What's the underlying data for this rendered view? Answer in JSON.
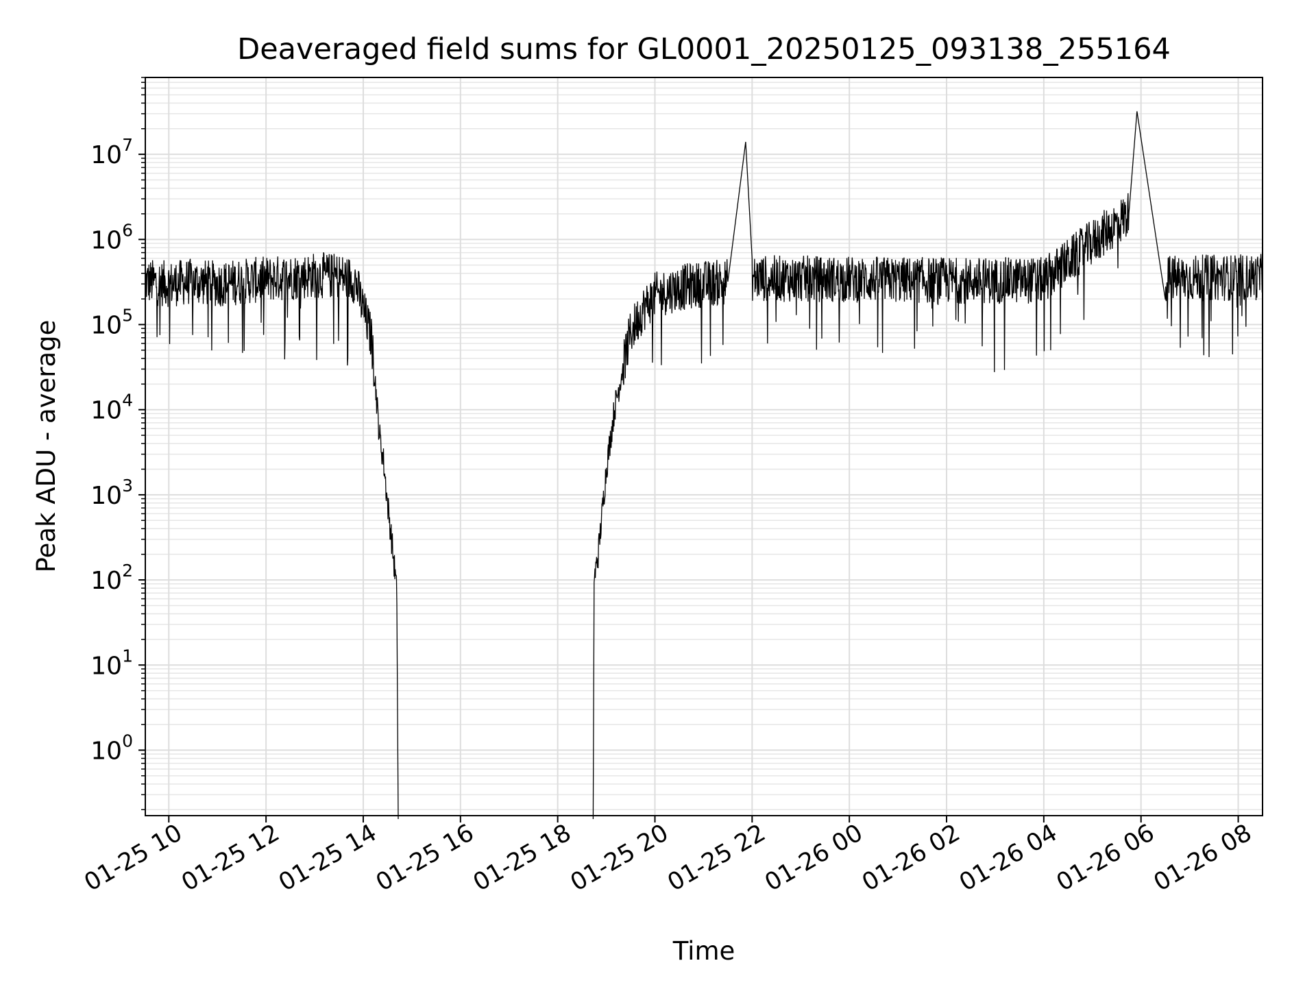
{
  "chart_data": {
    "type": "line",
    "title": "Deaveraged field sums for GL0001_20250125_093138_255164",
    "xlabel": "Time",
    "ylabel": "Peak ADU - average",
    "xscale": "time",
    "yscale": "log",
    "xlim": [
      "2025-01-25 09:31",
      "2025-01-26 08:30"
    ],
    "ylim": [
      0.17,
      80000000
    ],
    "grid": true,
    "x_ticks": [
      "01-25 10",
      "01-25 12",
      "01-25 14",
      "01-25 16",
      "01-25 18",
      "01-25 20",
      "01-25 22",
      "01-26 00",
      "01-26 02",
      "01-26 04",
      "01-26 06",
      "01-26 08"
    ],
    "y_ticks": [
      {
        "base": "10",
        "exp": "0"
      },
      {
        "base": "10",
        "exp": "1"
      },
      {
        "base": "10",
        "exp": "2"
      },
      {
        "base": "10",
        "exp": "3"
      },
      {
        "base": "10",
        "exp": "4"
      },
      {
        "base": "10",
        "exp": "5"
      },
      {
        "base": "10",
        "exp": "6"
      },
      {
        "base": "10",
        "exp": "7"
      }
    ],
    "series": [
      {
        "color": "#000000",
        "points": [
          [
            "2025-01-25 09:31",
            320000
          ],
          [
            "2025-01-25 10:00",
            300000
          ],
          [
            "2025-01-25 10:30",
            320000
          ],
          [
            "2025-01-25 11:00",
            300000
          ],
          [
            "2025-01-25 11:30",
            320000
          ],
          [
            "2025-01-25 12:00",
            340000
          ],
          [
            "2025-01-25 12:30",
            360000
          ],
          [
            "2025-01-25 13:00",
            380000
          ],
          [
            "2025-01-25 13:30",
            370000
          ],
          [
            "2025-01-25 13:50",
            330000
          ],
          [
            "2025-01-25 14:00",
            150000
          ],
          [
            "2025-01-25 14:10",
            70000
          ],
          [
            "2025-01-25 14:15",
            20000
          ],
          [
            "2025-01-25 14:20",
            5000
          ],
          [
            "2025-01-25 14:25",
            2500
          ],
          [
            "2025-01-25 14:30",
            800
          ],
          [
            "2025-01-25 14:35",
            300
          ],
          [
            "2025-01-25 14:40",
            100
          ],
          [
            "2025-01-25 14:42",
            60
          ],
          [
            "2025-01-25 18:45",
            100
          ],
          [
            "2025-01-25 18:50",
            200
          ],
          [
            "2025-01-25 19:00",
            2000
          ],
          [
            "2025-01-25 19:10",
            10000
          ],
          [
            "2025-01-25 19:20",
            30000
          ],
          [
            "2025-01-25 19:30",
            80000
          ],
          [
            "2025-01-25 19:45",
            150000
          ],
          [
            "2025-01-25 20:00",
            220000
          ],
          [
            "2025-01-25 20:30",
            270000
          ],
          [
            "2025-01-25 21:00",
            300000
          ],
          [
            "2025-01-25 21:30",
            320000
          ],
          [
            "2025-01-25 21:52",
            14000000
          ],
          [
            "2025-01-25 22:00",
            350000
          ],
          [
            "2025-01-26 00:00",
            340000
          ],
          [
            "2025-01-26 02:00",
            330000
          ],
          [
            "2025-01-26 04:00",
            330000
          ],
          [
            "2025-01-26 05:45",
            2000000
          ],
          [
            "2025-01-26 05:55",
            32000000
          ],
          [
            "2025-01-26 06:30",
            350000
          ],
          [
            "2025-01-26 08:30",
            360000
          ]
        ]
      }
    ]
  }
}
